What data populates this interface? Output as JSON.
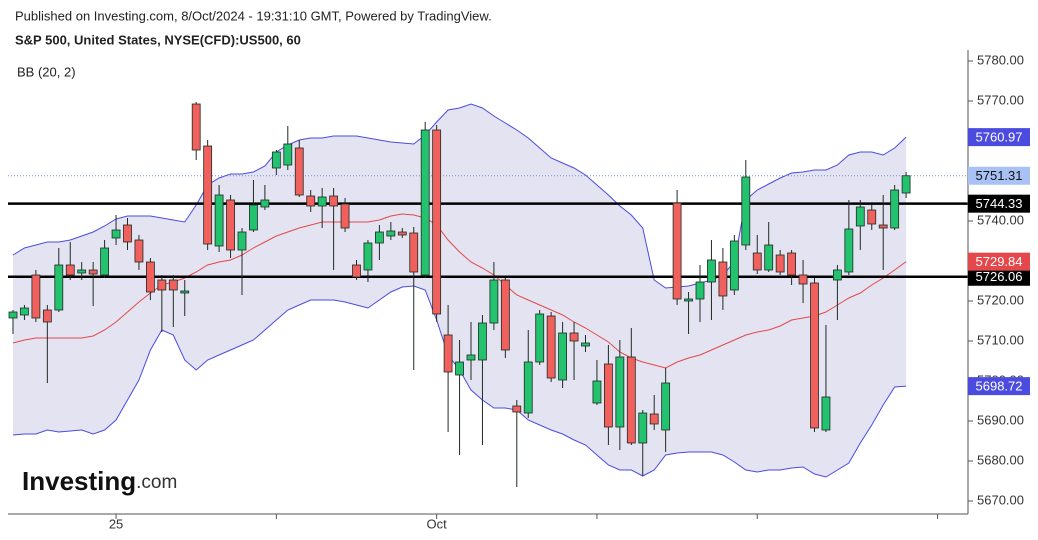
{
  "header": {
    "note": "Published on Investing.com, 8/Oct/2024 - 19:31:10 GMT, Powered by TradingView."
  },
  "logo": {
    "name": "Investing",
    "suffix": ".com"
  },
  "chart_data": {
    "type": "candlestick",
    "title": "S&P 500, United States, NYSE(CFD):US500, 60",
    "indicator_label": "BB (20, 2)",
    "categories": [
      null,
      null,
      null,
      null,
      null,
      null,
      null,
      null,
      null,
      "25",
      null,
      null,
      null,
      null,
      null,
      null,
      null,
      null,
      null,
      null,
      null,
      null,
      null,
      null,
      null,
      null,
      null,
      null,
      null,
      null,
      null,
      null,
      null,
      null,
      null,
      null,
      null,
      "Oct",
      null,
      null,
      null,
      null,
      null,
      null,
      null,
      null,
      null,
      null,
      null,
      null,
      null,
      null,
      null,
      null,
      null,
      null,
      null,
      null,
      null,
      null,
      null,
      null,
      null,
      null,
      null,
      null,
      null,
      null,
      null,
      null,
      null,
      null,
      null,
      null,
      null,
      null,
      null,
      null,
      null
    ],
    "xticks": [
      9,
      23,
      37,
      51,
      65,
      80.75
    ],
    "open": [
      5715.75,
      5716.5,
      5726.5,
      5717.75,
      5717.75,
      5729,
      5727,
      5727.75,
      5726.5,
      5735.75,
      5739,
      5735.25,
      5729.75,
      5725.25,
      5725.25,
      5722,
      5769.25,
      5758.75,
      5733.75,
      5745.25,
      5732.75,
      5737.75,
      5743.5,
      5753.25,
      5754,
      5758.25,
      5746.25,
      5743.75,
      5746.25,
      5744.25,
      5729,
      5727.75,
      5734.5,
      5736.25,
      5737.25,
      5737,
      5726.5,
      5762.75,
      5711.5,
      5701.5,
      5705.25,
      5705.25,
      5714.5,
      5725.25,
      5693.75,
      5692,
      5704.75,
      5716.25,
      5700.25,
      5712,
      5708.75,
      5694.5,
      5704.25,
      5688.5,
      5706,
      5684.5,
      5691.75,
      5687.75,
      5744.5,
      5720,
      5720.5,
      5724.75,
      5729.75,
      5722.75,
      5734,
      5732,
      5727.75,
      5731.5,
      5732,
      5726.5,
      5724.5,
      5687.75,
      5725.25,
      5727.25,
      5738.75,
      5742.75,
      5739,
      5738.25,
      5747
    ],
    "high": [
      5717.75,
      5719,
      5727.75,
      5719,
      5733.25,
      5734.75,
      5729.75,
      5729.75,
      5735.25,
      5741.5,
      5740.75,
      5736.5,
      5730.75,
      5726.5,
      5726.5,
      5725.25,
      5769.75,
      5760.25,
      5749,
      5746.5,
      5738.25,
      5750.25,
      5749,
      5757.75,
      5763.75,
      5760.25,
      5747.75,
      5748.25,
      5748.25,
      5745.75,
      5730.25,
      5735.25,
      5739,
      5739.75,
      5738.25,
      5738.5,
      5764.75,
      5764,
      5719,
      5710.25,
      5714.75,
      5716.5,
      5729.75,
      5725.75,
      5695.25,
      5712.75,
      5717.75,
      5717.25,
      5714.75,
      5714.75,
      5711.5,
      5705.25,
      5709,
      5710.25,
      5713.25,
      5692.75,
      5696.5,
      5703.25,
      5747.75,
      5722.25,
      5729,
      5735.25,
      5733.25,
      5736.5,
      5755.25,
      5736.5,
      5739.75,
      5732.75,
      5732.75,
      5730.25,
      5725.75,
      5714,
      5729,
      5745.25,
      5745.25,
      5744,
      5746.5,
      5749,
      5752.25
    ],
    "low": [
      5711.75,
      5715.25,
      5714.75,
      5699.5,
      5717.25,
      5725.25,
      5725.25,
      5718.75,
      5725.75,
      5734,
      5732.75,
      5727.75,
      5720.25,
      5712.25,
      5713.5,
      5716.25,
      5755.25,
      5732.75,
      5732.25,
      5730.75,
      5721.5,
      5737.25,
      5742.75,
      5751.5,
      5752.75,
      5746,
      5742.25,
      5738.25,
      5727.75,
      5737.25,
      5725.25,
      5724.75,
      5730.25,
      5735.25,
      5735.75,
      5702.75,
      5725.75,
      5714.75,
      5687.25,
      5681.5,
      5700.25,
      5684,
      5712.75,
      5705.75,
      5673.5,
      5690.75,
      5704,
      5699.75,
      5698.25,
      5700.25,
      5707.25,
      5694,
      5684,
      5682.75,
      5684,
      5676.25,
      5687.75,
      5682.25,
      5719,
      5711.75,
      5714.75,
      5715.25,
      5717.75,
      5721.5,
      5732.75,
      5726.75,
      5727.25,
      5726.5,
      5724,
      5719.5,
      5687.25,
      5687.25,
      5715.25,
      5726.5,
      5732.75,
      5737.75,
      5727.75,
      5737.75,
      5745.75
    ],
    "close": [
      5717.25,
      5718.25,
      5715.75,
      5714.75,
      5729,
      5726.5,
      5727.75,
      5726.75,
      5733.25,
      5737.75,
      5734.75,
      5729.75,
      5722.25,
      5722.75,
      5722.75,
      5722.5,
      5757.75,
      5734.25,
      5746.5,
      5732.75,
      5737.25,
      5744,
      5745.25,
      5757.25,
      5759.25,
      5746.5,
      5743.75,
      5746,
      5743.75,
      5738.25,
      5726,
      5734.5,
      5737.25,
      5737.5,
      5736.5,
      5727.25,
      5762.75,
      5716.75,
      5702.25,
      5704.75,
      5706.5,
      5714.5,
      5725.25,
      5707.75,
      5692.25,
      5704.75,
      5716.75,
      5700.75,
      5712,
      5710,
      5709.5,
      5700,
      5688.5,
      5706,
      5684.5,
      5692,
      5689.25,
      5699.5,
      5720.5,
      5720.5,
      5724.75,
      5730.25,
      5721.25,
      5735,
      5751,
      5727.75,
      5734,
      5727.25,
      5726.5,
      5724.25,
      5688.25,
      5696,
      5727.75,
      5738,
      5743.5,
      5739.25,
      5738.25,
      5747.75,
      5751.31
    ],
    "up_color": "#22c26e",
    "down_color": "#f0605d",
    "last_price_color": "#a9c2f5",
    "bollinger": {
      "upper": [
        5731.5,
        5733.25,
        5734,
        5734.75,
        5734.75,
        5735.25,
        5736.25,
        5737.25,
        5738.75,
        5740.5,
        5741.25,
        5741.25,
        5741.25,
        5740.75,
        5740.25,
        5739.75,
        5744,
        5749,
        5750.75,
        5751.75,
        5751.75,
        5752.25,
        5753.75,
        5757.25,
        5759,
        5760.25,
        5760.75,
        5760.75,
        5761.25,
        5761.25,
        5761.25,
        5760.75,
        5760.25,
        5759.75,
        5759.5,
        5759.25,
        5761.5,
        5764.75,
        5767.75,
        5768.25,
        5769.25,
        5768.25,
        5766.25,
        5764.5,
        5762.75,
        5760.75,
        5758.25,
        5755.75,
        5754.5,
        5753.25,
        5751.5,
        5749,
        5746.5,
        5743.75,
        5741.5,
        5738.25,
        5725.25,
        5723.25,
        5723.5,
        5723.75,
        5724.5,
        5725.25,
        5726.5,
        5729.75,
        5745.25,
        5747.75,
        5749.25,
        5750.75,
        5752,
        5752.25,
        5752.75,
        5752.75,
        5754,
        5756.5,
        5757.25,
        5757.25,
        5756.5,
        5758.25,
        5760.97
      ],
      "middle": [
        5709.5,
        5710.25,
        5710.75,
        5710.75,
        5710.75,
        5710.75,
        5710.75,
        5711.25,
        5712.75,
        5714.75,
        5717.25,
        5719.75,
        5722,
        5724,
        5724.75,
        5725.75,
        5727.25,
        5729,
        5729.75,
        5730.25,
        5731.5,
        5733.25,
        5734.75,
        5736.25,
        5737.25,
        5738.25,
        5739,
        5739.75,
        5739.75,
        5739.75,
        5739.75,
        5739.75,
        5740.25,
        5741.25,
        5741.75,
        5741.5,
        5740.75,
        5739,
        5735.25,
        5732.25,
        5729.75,
        5728.25,
        5726.5,
        5724,
        5721.5,
        5720.25,
        5719,
        5717.75,
        5716.5,
        5714.75,
        5713.25,
        5711.5,
        5709.75,
        5707.25,
        5705.75,
        5704.75,
        5704,
        5703.25,
        5704.75,
        5705.75,
        5706.5,
        5707.75,
        5709,
        5710.25,
        5711.5,
        5712.25,
        5712.75,
        5713.75,
        5715.25,
        5715.75,
        5716.25,
        5717.25,
        5719,
        5720.75,
        5722,
        5724,
        5725.75,
        5727.75,
        5729.84
      ],
      "lower": [
        5686.5,
        5686.75,
        5686.75,
        5687.75,
        5687.25,
        5687.5,
        5687.75,
        5686.75,
        5687.75,
        5690.25,
        5695.25,
        5700.25,
        5707.75,
        5712.75,
        5711.5,
        5705.25,
        5702.75,
        5705.25,
        5706.5,
        5707.75,
        5709,
        5710.25,
        5712.75,
        5715.25,
        5717.75,
        5719,
        5720.25,
        5720.25,
        5720.25,
        5719.75,
        5719,
        5718.25,
        5720.25,
        5722.25,
        5723.5,
        5723.75,
        5722.75,
        5715.25,
        5706.5,
        5702.75,
        5697.75,
        5695.25,
        5693.25,
        5693.25,
        5692.75,
        5690.25,
        5689,
        5687.75,
        5686.75,
        5685.25,
        5684,
        5681.5,
        5679,
        5677.75,
        5677.75,
        5676.25,
        5677.75,
        5681.5,
        5682,
        5682.25,
        5682.25,
        5682.25,
        5681.5,
        5679.75,
        5677.75,
        5677.25,
        5677.75,
        5677.75,
        5678.25,
        5678.5,
        5676.75,
        5676,
        5677.75,
        5679.5,
        5684.5,
        5689,
        5694,
        5698.5,
        5698.72
      ],
      "band_color": "#4b4be0",
      "fill_color": "#e3e3f1",
      "middle_color": "#e5484a"
    },
    "hlines": [
      {
        "value": 5744.33,
        "color": "#000000"
      },
      {
        "value": 5726.06,
        "color": "#000000"
      }
    ],
    "ylim": [
      5667.25,
      5782.75
    ],
    "yticks": [
      {
        "value": 5670,
        "label": "5670.00"
      },
      {
        "value": 5680,
        "label": "5680.00"
      },
      {
        "value": 5690,
        "label": "5690.00"
      },
      {
        "value": 5700,
        "label": "5700.00"
      },
      {
        "value": 5710,
        "label": "5710.00"
      },
      {
        "value": 5720,
        "label": "5720.00"
      },
      {
        "value": 5730,
        "label": "5730.00"
      },
      {
        "value": 5740,
        "label": "5740.00"
      },
      {
        "value": 5750,
        "label": "5750.00"
      },
      {
        "value": 5760,
        "label": "5760.00"
      },
      {
        "value": 5770,
        "label": "5770.00"
      },
      {
        "value": 5780,
        "label": "5780.00"
      }
    ],
    "grid": false
  }
}
